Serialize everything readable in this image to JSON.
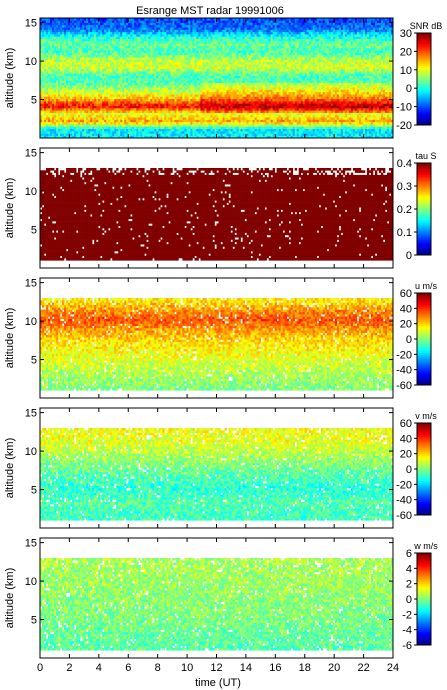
{
  "chart_data": {
    "type": "heatmap",
    "title": "Esrange MST radar 19991006",
    "xlabel": "time (UT)",
    "x_ticks": [
      0,
      2,
      4,
      6,
      8,
      10,
      12,
      14,
      16,
      18,
      20,
      22,
      24
    ],
    "xlim": [
      0,
      24
    ],
    "colormap": "jet",
    "panels": [
      {
        "ylabel": "altitude (km)",
        "ylim": [
          0,
          15.6
        ],
        "y_ticks": [
          5,
          10,
          15
        ],
        "colorbar_label": "SNR dB",
        "colorbar_range": [
          -20,
          30
        ],
        "colorbar_ticks": [
          30,
          20,
          10,
          0,
          -10,
          -20
        ],
        "fill": "full",
        "description_profile": [
          {
            "alt": 1,
            "value": -2
          },
          {
            "alt": 2,
            "value": 16
          },
          {
            "alt": 3,
            "value": 10
          },
          {
            "alt": 4,
            "value": 24
          },
          {
            "alt": 5,
            "value": 14
          },
          {
            "alt": 6,
            "value": 8
          },
          {
            "alt": 7,
            "value": 3
          },
          {
            "alt": 8,
            "value": 2
          },
          {
            "alt": 9,
            "value": 9
          },
          {
            "alt": 10,
            "value": 8
          },
          {
            "alt": 11,
            "value": 2
          },
          {
            "alt": 12,
            "value": 4
          },
          {
            "alt": 13,
            "value": 0
          },
          {
            "alt": 14,
            "value": -8
          },
          {
            "alt": 15,
            "value": -10
          }
        ]
      },
      {
        "ylabel": "altitude (km)",
        "ylim": [
          0,
          15.6
        ],
        "y_ticks": [
          5,
          10,
          15
        ],
        "colorbar_label": "tau S",
        "colorbar_range": [
          0,
          0.4
        ],
        "colorbar_ticks": [
          0.4,
          0.3,
          0.2,
          0.1,
          0
        ],
        "fill": "data",
        "data_top_km": 13,
        "dominant_value": 0.41
      },
      {
        "ylabel": "altitude (km)",
        "ylim": [
          0,
          15.6
        ],
        "y_ticks": [
          5,
          10,
          15
        ],
        "colorbar_label": "u m/s",
        "colorbar_range": [
          -60,
          60
        ],
        "colorbar_ticks": [
          60,
          40,
          20,
          0,
          -20,
          -40,
          -60
        ],
        "fill": "data",
        "data_top_km": 13,
        "description_profile": [
          {
            "alt": 1,
            "value": 0
          },
          {
            "alt": 3,
            "value": 5
          },
          {
            "alt": 5,
            "value": 12
          },
          {
            "alt": 7,
            "value": 18
          },
          {
            "alt": 9,
            "value": 28
          },
          {
            "alt": 10,
            "value": 36
          },
          {
            "alt": 11,
            "value": 30
          },
          {
            "alt": 12,
            "value": 22
          },
          {
            "alt": 13,
            "value": 15
          }
        ]
      },
      {
        "ylabel": "altitude (km)",
        "ylim": [
          0,
          15.6
        ],
        "y_ticks": [
          5,
          10,
          15
        ],
        "colorbar_label": "v m/s",
        "colorbar_range": [
          -60,
          60
        ],
        "colorbar_ticks": [
          60,
          40,
          20,
          0,
          -20,
          -40,
          -60
        ],
        "fill": "data",
        "data_top_km": 13,
        "description_profile": [
          {
            "alt": 1,
            "value": -8
          },
          {
            "alt": 3,
            "value": -5
          },
          {
            "alt": 5,
            "value": -10
          },
          {
            "alt": 7,
            "value": -4
          },
          {
            "alt": 9,
            "value": 4
          },
          {
            "alt": 11,
            "value": 12
          },
          {
            "alt": 13,
            "value": 14
          }
        ]
      },
      {
        "ylabel": "altitude (km)",
        "ylim": [
          0,
          15.6
        ],
        "y_ticks": [
          5,
          10,
          15
        ],
        "colorbar_label": "w m/s",
        "colorbar_range": [
          -6,
          6
        ],
        "colorbar_ticks": [
          6,
          4,
          2,
          0,
          -2,
          -4,
          -6
        ],
        "fill": "data",
        "data_top_km": 13,
        "description_profile": [
          {
            "alt": 1,
            "value": -0.5
          },
          {
            "alt": 5,
            "value": 0
          },
          {
            "alt": 9,
            "value": 0.3
          },
          {
            "alt": 13,
            "value": 0.5
          }
        ]
      }
    ]
  }
}
